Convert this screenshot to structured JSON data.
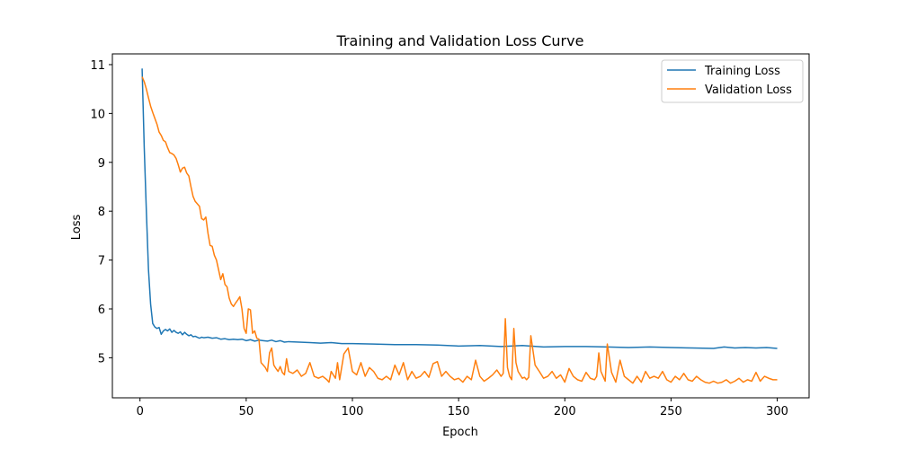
{
  "chart_data": {
    "type": "line",
    "title": "Training and Validation Loss Curve",
    "xlabel": "Epoch",
    "ylabel": "Loss",
    "xlim": [
      -13,
      315
    ],
    "ylim": [
      4.18,
      11.22
    ],
    "xticks": [
      0,
      50,
      100,
      150,
      200,
      250,
      300
    ],
    "yticks": [
      5,
      6,
      7,
      8,
      9,
      10,
      11
    ],
    "grid": false,
    "legend_position": "top-right",
    "series": [
      {
        "name": "Training Loss",
        "color": "#1f77b4",
        "x": [
          1,
          2,
          3,
          4,
          5,
          6,
          7,
          8,
          9,
          10,
          11,
          12,
          13,
          14,
          15,
          16,
          17,
          18,
          19,
          20,
          21,
          22,
          23,
          24,
          25,
          26,
          27,
          28,
          29,
          30,
          32,
          34,
          36,
          38,
          40,
          42,
          44,
          46,
          48,
          50,
          52,
          54,
          56,
          58,
          60,
          62,
          64,
          66,
          68,
          70,
          75,
          80,
          85,
          90,
          95,
          100,
          110,
          120,
          130,
          140,
          150,
          160,
          170,
          180,
          190,
          200,
          210,
          220,
          230,
          240,
          250,
          260,
          270,
          275,
          280,
          285,
          290,
          295,
          300
        ],
        "values": [
          10.92,
          9.3,
          8.0,
          6.8,
          6.1,
          5.7,
          5.63,
          5.6,
          5.62,
          5.48,
          5.55,
          5.58,
          5.55,
          5.59,
          5.52,
          5.56,
          5.52,
          5.5,
          5.53,
          5.47,
          5.52,
          5.48,
          5.45,
          5.47,
          5.43,
          5.44,
          5.42,
          5.4,
          5.42,
          5.41,
          5.42,
          5.4,
          5.41,
          5.38,
          5.39,
          5.37,
          5.38,
          5.37,
          5.38,
          5.35,
          5.37,
          5.34,
          5.36,
          5.35,
          5.34,
          5.36,
          5.33,
          5.35,
          5.32,
          5.33,
          5.32,
          5.31,
          5.3,
          5.31,
          5.29,
          5.29,
          5.28,
          5.27,
          5.27,
          5.26,
          5.24,
          5.25,
          5.23,
          5.25,
          5.22,
          5.23,
          5.23,
          5.22,
          5.21,
          5.22,
          5.21,
          5.2,
          5.19,
          5.22,
          5.2,
          5.21,
          5.2,
          5.21,
          5.19
        ]
      },
      {
        "name": "Validation Loss",
        "color": "#ff7f0e",
        "x": [
          1,
          2,
          3,
          4,
          5,
          6,
          7,
          8,
          9,
          10,
          11,
          12,
          13,
          14,
          15,
          16,
          17,
          18,
          19,
          20,
          21,
          22,
          23,
          24,
          25,
          26,
          27,
          28,
          29,
          30,
          31,
          32,
          33,
          34,
          35,
          36,
          37,
          38,
          39,
          40,
          41,
          42,
          43,
          44,
          45,
          46,
          47,
          48,
          49,
          50,
          51,
          52,
          53,
          54,
          55,
          56,
          57,
          58,
          59,
          60,
          61,
          62,
          63,
          64,
          65,
          66,
          67,
          68,
          69,
          70,
          72,
          74,
          76,
          78,
          80,
          82,
          84,
          86,
          88,
          89,
          90,
          92,
          93,
          94,
          96,
          98,
          100,
          102,
          104,
          106,
          108,
          110,
          112,
          114,
          116,
          118,
          120,
          122,
          124,
          126,
          128,
          130,
          132,
          134,
          136,
          138,
          140,
          142,
          144,
          146,
          148,
          150,
          152,
          154,
          156,
          158,
          160,
          162,
          164,
          166,
          168,
          170,
          171,
          172,
          173,
          174,
          175,
          176,
          177,
          178,
          180,
          181,
          182,
          183,
          184,
          186,
          188,
          190,
          192,
          194,
          196,
          198,
          200,
          202,
          204,
          206,
          208,
          210,
          212,
          214,
          215,
          216,
          217,
          218,
          219,
          220,
          222,
          224,
          226,
          228,
          230,
          232,
          234,
          236,
          238,
          240,
          242,
          244,
          246,
          248,
          250,
          252,
          254,
          256,
          258,
          260,
          262,
          264,
          266,
          268,
          270,
          272,
          274,
          276,
          278,
          280,
          282,
          284,
          286,
          288,
          290,
          292,
          294,
          296,
          298,
          300
        ],
        "values": [
          10.75,
          10.65,
          10.5,
          10.32,
          10.15,
          10.02,
          9.9,
          9.78,
          9.62,
          9.55,
          9.45,
          9.42,
          9.3,
          9.2,
          9.18,
          9.15,
          9.08,
          8.95,
          8.8,
          8.88,
          8.9,
          8.78,
          8.72,
          8.5,
          8.3,
          8.2,
          8.15,
          8.1,
          7.85,
          7.82,
          7.88,
          7.55,
          7.3,
          7.28,
          7.1,
          7.0,
          6.8,
          6.6,
          6.72,
          6.5,
          6.45,
          6.22,
          6.1,
          6.05,
          6.12,
          6.18,
          6.25,
          6.0,
          5.6,
          5.5,
          6.0,
          5.98,
          5.5,
          5.55,
          5.4,
          5.38,
          4.9,
          4.85,
          4.8,
          4.72,
          5.1,
          5.2,
          4.85,
          4.78,
          4.72,
          4.82,
          4.7,
          4.65,
          4.98,
          4.72,
          4.68,
          4.75,
          4.62,
          4.68,
          4.9,
          4.62,
          4.58,
          4.62,
          4.55,
          4.5,
          4.72,
          4.58,
          4.9,
          4.55,
          5.08,
          5.2,
          4.72,
          4.65,
          4.9,
          4.62,
          4.8,
          4.72,
          4.58,
          4.55,
          4.62,
          4.55,
          4.85,
          4.65,
          4.9,
          4.55,
          4.72,
          4.58,
          4.62,
          4.72,
          4.6,
          4.88,
          4.92,
          4.62,
          4.72,
          4.62,
          4.55,
          4.58,
          4.5,
          4.62,
          4.55,
          4.95,
          4.62,
          4.52,
          4.58,
          4.65,
          4.75,
          4.62,
          4.68,
          5.8,
          4.8,
          4.62,
          4.55,
          5.6,
          4.9,
          4.72,
          4.58,
          4.6,
          4.55,
          4.6,
          5.45,
          4.85,
          4.72,
          4.58,
          4.62,
          4.72,
          4.58,
          4.65,
          4.5,
          4.78,
          4.62,
          4.55,
          4.52,
          4.7,
          4.58,
          4.55,
          4.62,
          5.1,
          4.72,
          4.62,
          4.52,
          5.28,
          4.7,
          4.5,
          4.95,
          4.62,
          4.55,
          4.48,
          4.62,
          4.5,
          4.72,
          4.58,
          4.62,
          4.58,
          4.72,
          4.55,
          4.5,
          4.62,
          4.55,
          4.68,
          4.55,
          4.52,
          4.62,
          4.55,
          4.5,
          4.48,
          4.52,
          4.48,
          4.5,
          4.55,
          4.48,
          4.52,
          4.58,
          4.5,
          4.55,
          4.52,
          4.7,
          4.52,
          4.62,
          4.58,
          4.55,
          4.55
        ]
      }
    ]
  }
}
